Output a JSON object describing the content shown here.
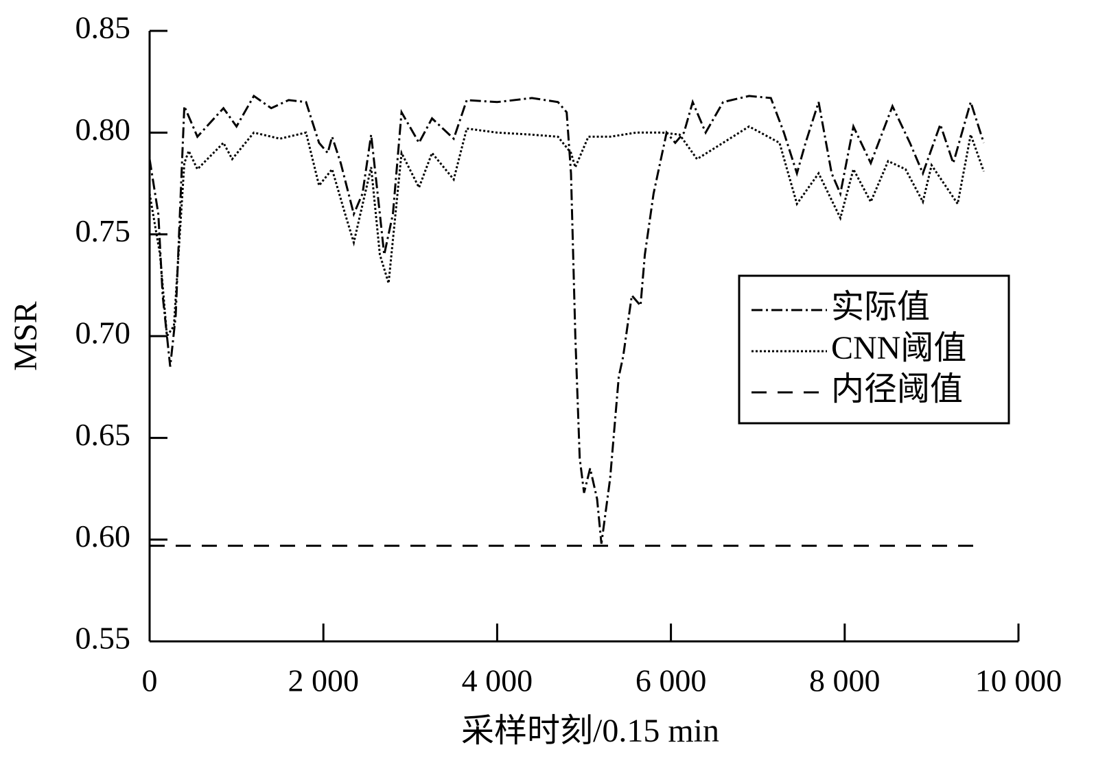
{
  "chart_data": {
    "type": "line",
    "xlabel": "采样时刻/0.15 min",
    "ylabel": "MSR",
    "xlim": [
      0,
      10000
    ],
    "ylim": [
      0.55,
      0.85
    ],
    "xticks": [
      0,
      {
        "value": 2000,
        "label": "2 000"
      },
      {
        "value": 4000,
        "label": "4 000"
      },
      {
        "value": 6000,
        "label": "6 000"
      },
      {
        "value": 8000,
        "label": "8 000"
      },
      {
        "value": 10000,
        "label": "10 000"
      }
    ],
    "yticks": [
      0.55,
      {
        "value": 0.6,
        "label": "0.60"
      },
      0.65,
      {
        "value": 0.7,
        "label": "0.70"
      },
      0.75,
      {
        "value": 0.8,
        "label": "0.80"
      },
      0.85
    ],
    "grid": false,
    "legend": "right",
    "series": [
      {
        "name": "实际值",
        "color": "#000000",
        "style": "dashdot",
        "x": [
          0,
          100,
          150,
          237,
          300,
          400,
          550,
          850,
          1000,
          1200,
          1400,
          1600,
          1800,
          1950,
          2050,
          2100,
          2200,
          2350,
          2450,
          2550,
          2650,
          2700,
          2800,
          2900,
          3100,
          3250,
          3500,
          3650,
          4000,
          4400,
          4700,
          4800,
          4850,
          4900,
          4950,
          5000,
          5070,
          5150,
          5200,
          5300,
          5400,
          5450,
          5550,
          5650,
          5700,
          5800,
          5850,
          5950,
          6050,
          6150,
          6250,
          6400,
          6600,
          6900,
          7150,
          7300,
          7450,
          7550,
          7700,
          7850,
          7950,
          8100,
          8300,
          8550,
          8750,
          8900,
          9100,
          9250,
          9450,
          9600
        ],
        "values": [
          0.787,
          0.76,
          0.72,
          0.685,
          0.71,
          0.813,
          0.798,
          0.812,
          0.803,
          0.818,
          0.812,
          0.816,
          0.815,
          0.795,
          0.79,
          0.798,
          0.785,
          0.76,
          0.77,
          0.799,
          0.76,
          0.74,
          0.76,
          0.81,
          0.795,
          0.807,
          0.797,
          0.816,
          0.815,
          0.817,
          0.815,
          0.81,
          0.78,
          0.7,
          0.64,
          0.623,
          0.635,
          0.62,
          0.598,
          0.63,
          0.68,
          0.69,
          0.72,
          0.715,
          0.74,
          0.77,
          0.78,
          0.8,
          0.795,
          0.8,
          0.815,
          0.8,
          0.815,
          0.818,
          0.817,
          0.8,
          0.78,
          0.795,
          0.815,
          0.78,
          0.77,
          0.803,
          0.785,
          0.813,
          0.795,
          0.78,
          0.804,
          0.785,
          0.815,
          0.795
        ]
      },
      {
        "name": "CNN阈值",
        "color": "#000000",
        "style": "dotted",
        "x": [
          0,
          120,
          200,
          280,
          400,
          450,
          550,
          850,
          950,
          1200,
          1500,
          1800,
          1950,
          2100,
          2250,
          2350,
          2550,
          2650,
          2750,
          2900,
          3100,
          3250,
          3500,
          3650,
          4000,
          4400,
          4700,
          4850,
          4900,
          5050,
          5300,
          5600,
          5900,
          6100,
          6300,
          6600,
          6900,
          7250,
          7450,
          7700,
          7950,
          8100,
          8300,
          8500,
          8700,
          8900,
          9000,
          9300,
          9450,
          9600
        ],
        "values": [
          0.77,
          0.74,
          0.7,
          0.705,
          0.785,
          0.791,
          0.782,
          0.795,
          0.787,
          0.8,
          0.797,
          0.8,
          0.774,
          0.782,
          0.76,
          0.746,
          0.783,
          0.74,
          0.726,
          0.79,
          0.773,
          0.79,
          0.777,
          0.802,
          0.8,
          0.799,
          0.798,
          0.79,
          0.783,
          0.798,
          0.798,
          0.8,
          0.8,
          0.799,
          0.787,
          0.795,
          0.803,
          0.795,
          0.765,
          0.78,
          0.758,
          0.782,
          0.766,
          0.786,
          0.782,
          0.766,
          0.784,
          0.765,
          0.799,
          0.781
        ]
      },
      {
        "name": "内径阈值",
        "color": "#000000",
        "style": "dashed",
        "x": [
          0,
          9600
        ],
        "values": [
          0.597,
          0.597
        ]
      }
    ]
  }
}
